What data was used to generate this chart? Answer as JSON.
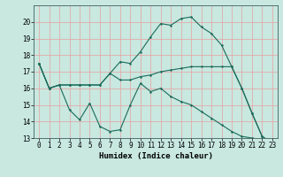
{
  "title": "",
  "xlabel": "Humidex (Indice chaleur)",
  "background_color": "#c8e8e0",
  "grid_color": "#e8a0a0",
  "line_color": "#1a6b5a",
  "xlim": [
    -0.5,
    23.5
  ],
  "ylim": [
    13,
    21
  ],
  "yticks": [
    13,
    14,
    15,
    16,
    17,
    18,
    19,
    20
  ],
  "xticks": [
    0,
    1,
    2,
    3,
    4,
    5,
    6,
    7,
    8,
    9,
    10,
    11,
    12,
    13,
    14,
    15,
    16,
    17,
    18,
    19,
    20,
    21,
    22,
    23
  ],
  "line1_x": [
    0,
    1,
    2,
    3,
    4,
    5,
    6,
    7,
    8,
    9,
    10,
    11,
    12,
    13,
    14,
    15,
    16,
    17,
    18,
    19,
    20,
    21,
    22,
    23
  ],
  "line1_y": [
    17.5,
    16.0,
    16.2,
    16.2,
    16.2,
    16.2,
    16.2,
    16.9,
    17.6,
    17.5,
    18.2,
    19.1,
    19.9,
    19.8,
    20.2,
    20.3,
    19.7,
    19.3,
    18.6,
    17.3,
    16.0,
    14.5,
    13.1,
    12.7
  ],
  "line2_x": [
    0,
    1,
    2,
    3,
    4,
    5,
    6,
    7,
    8,
    9,
    10,
    11,
    12,
    13,
    14,
    15,
    16,
    17,
    18,
    19,
    20,
    21,
    22,
    23
  ],
  "line2_y": [
    17.5,
    16.0,
    16.2,
    16.2,
    16.2,
    16.2,
    16.2,
    16.9,
    16.5,
    16.5,
    16.7,
    16.8,
    17.0,
    17.1,
    17.2,
    17.3,
    17.3,
    17.3,
    17.3,
    17.3,
    16.0,
    14.5,
    13.1,
    12.7
  ],
  "line3_x": [
    0,
    1,
    2,
    3,
    4,
    5,
    6,
    7,
    8,
    9,
    10,
    11,
    12,
    13,
    14,
    15,
    16,
    17,
    18,
    19,
    20,
    21,
    22,
    23
  ],
  "line3_y": [
    17.5,
    16.0,
    16.2,
    14.7,
    14.1,
    15.1,
    13.7,
    13.4,
    13.5,
    15.0,
    16.3,
    15.8,
    16.0,
    15.5,
    15.2,
    15.0,
    14.6,
    14.2,
    13.8,
    13.4,
    13.1,
    13.0,
    12.9,
    12.7
  ]
}
